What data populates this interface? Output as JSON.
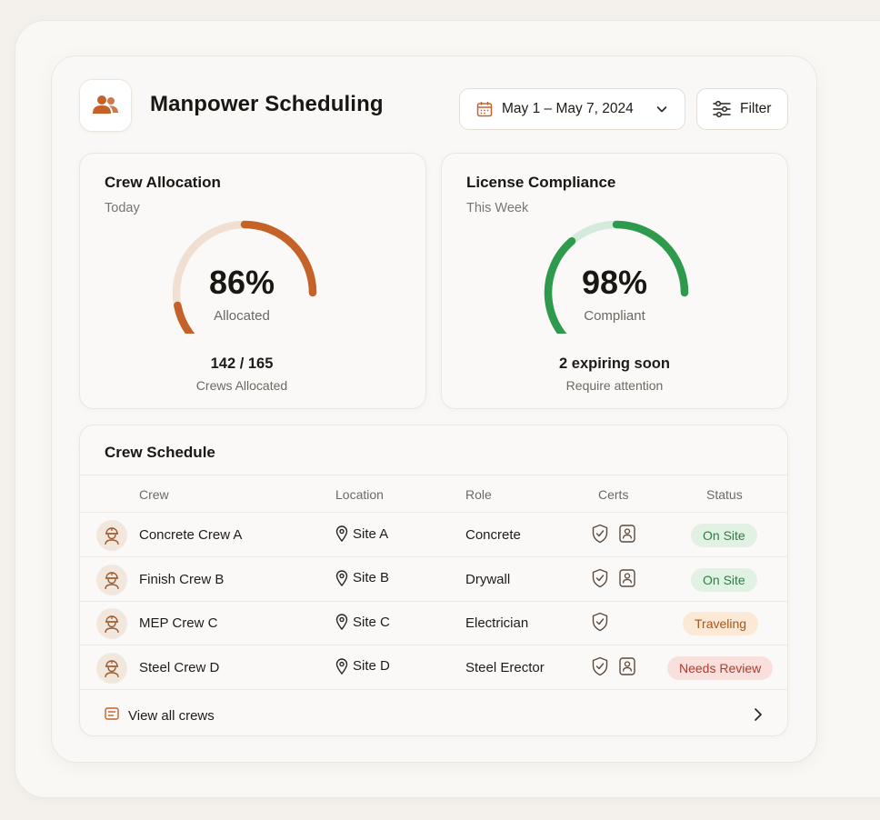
{
  "header": {
    "title": "Manpower Scheduling",
    "date_range": "May 1 – May 7, 2024",
    "filter_label": "Filter"
  },
  "allocation": {
    "title": "Crew Allocation",
    "period": "Today",
    "percent": "86%",
    "percent_label": "Allocated",
    "fraction": 0.86,
    "stat": "142 / 165",
    "stat_label": "Crews Allocated",
    "color": "#c4622a"
  },
  "compliance": {
    "title": "License Compliance",
    "period": "This Week",
    "percent": "98%",
    "percent_label": "Compliant",
    "fraction": 0.98,
    "stat": "2 expiring soon",
    "stat_label": "Require attention",
    "color": "#2e9a4e"
  },
  "schedule": {
    "title": "Crew Schedule",
    "columns": {
      "crew": "Crew",
      "location": "Location",
      "role": "Role",
      "certs": "Certs",
      "status": "Status"
    },
    "rows": [
      {
        "crew": "Concrete Crew A",
        "location": "Site A",
        "role": "Concrete",
        "certs": [
          "shield-check-icon",
          "id-badge-icon"
        ],
        "status": "On Site"
      },
      {
        "crew": "Finish Crew B",
        "location": "Site B",
        "role": "Drywall",
        "certs": [
          "shield-check-icon",
          "id-badge-icon"
        ],
        "status": "On Site"
      },
      {
        "crew": "MEP Crew C",
        "location": "Site C",
        "role": "Electrician",
        "certs": [
          "shield-check-icon"
        ],
        "status": "Traveling"
      },
      {
        "crew": "Steel Crew D",
        "location": "Site D",
        "role": "Steel Erector",
        "certs": [
          "shield-check-icon",
          "id-badge-icon"
        ],
        "status": "Needs Review"
      }
    ],
    "footer_label": "View all crews"
  },
  "status_colors": {
    "On Site": {
      "bg": "#e1f1e3",
      "fg": "#2f7d41"
    },
    "Traveling": {
      "bg": "#fbe9d6",
      "fg": "#a5561c"
    },
    "Needs Review": {
      "bg": "#f9e0dc",
      "fg": "#b23a2b"
    }
  }
}
